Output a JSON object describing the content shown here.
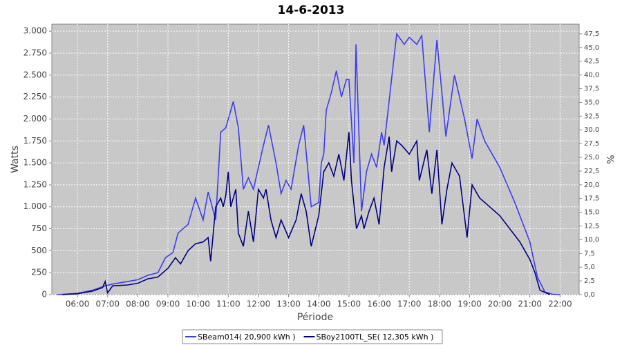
{
  "chart_data": {
    "type": "line",
    "title": "14-6-2013",
    "x_label": "Période",
    "y_label": "Watts",
    "y2_label": "%",
    "xlim": [
      "05:09",
      "22:38"
    ],
    "xticks": [
      "06:00",
      "07:00",
      "08:00",
      "09:00",
      "10:00",
      "11:00",
      "12:00",
      "13:00",
      "14:00",
      "15:00",
      "16:00",
      "17:00",
      "18:00",
      "19:00",
      "20:00",
      "21:00",
      "22:00"
    ],
    "ylim": [
      0,
      3080
    ],
    "yticks": [
      0,
      250,
      500,
      750,
      {
        "value": 1000,
        "label": "1.000"
      },
      {
        "value": 1250,
        "label": "1.250"
      },
      {
        "value": 1500,
        "label": "1.500"
      },
      {
        "value": 1750,
        "label": "1.750"
      },
      {
        "value": 2000,
        "label": "2.000"
      },
      {
        "value": 2250,
        "label": "2.250"
      },
      {
        "value": 2500,
        "label": "2.500"
      },
      {
        "value": 2750,
        "label": "2.750"
      },
      {
        "value": 3000,
        "label": "3.000"
      }
    ],
    "y2lim": [
      0,
      49.25
    ],
    "y2ticks": [
      {
        "value": 0,
        "label": "0,0"
      },
      {
        "value": 2.5,
        "label": "2,5"
      },
      {
        "value": 5,
        "label": "5,0"
      },
      {
        "value": 7.5,
        "label": "7,5"
      },
      {
        "value": 10,
        "label": "10,0"
      },
      {
        "value": 12.5,
        "label": "12,5"
      },
      {
        "value": 15,
        "label": "15,0"
      },
      {
        "value": 17.5,
        "label": "17,5"
      },
      {
        "value": 20,
        "label": "20,0"
      },
      {
        "value": 22.5,
        "label": "22,5"
      },
      {
        "value": 25,
        "label": "25,0"
      },
      {
        "value": 27.5,
        "label": "27,5"
      },
      {
        "value": 30,
        "label": "30,0"
      },
      {
        "value": 32.5,
        "label": "32,5"
      },
      {
        "value": 35,
        "label": "35,0"
      },
      {
        "value": 37.5,
        "label": "37,5"
      },
      {
        "value": 40,
        "label": "40,0"
      },
      {
        "value": 42.5,
        "label": "42,5"
      },
      {
        "value": 45,
        "label": "45,0"
      },
      {
        "value": 47.5,
        "label": "47,5"
      }
    ],
    "grid": true,
    "legend": "bottom",
    "series": [
      {
        "name": "SBeam014( 20,900 kWh )",
        "color": "#3c3cf0",
        "x": [
          "05:20",
          "06:00",
          "06:30",
          "06:55",
          "07:10",
          "07:40",
          "08:00",
          "08:20",
          "08:40",
          "08:55",
          "09:10",
          "09:20",
          "09:40",
          "09:55",
          "10:10",
          "10:20",
          "10:35",
          "10:45",
          "10:55",
          "11:10",
          "11:20",
          "11:30",
          "11:40",
          "11:50",
          "12:10",
          "12:20",
          "12:35",
          "12:45",
          "12:55",
          "13:05",
          "13:20",
          "13:30",
          "13:45",
          "14:00",
          "14:05",
          "14:10",
          "14:15",
          "14:25",
          "14:35",
          "14:45",
          "14:55",
          "15:00",
          "15:10",
          "15:14",
          "15:25",
          "15:35",
          "15:45",
          "15:55",
          "16:05",
          "16:10",
          "16:35",
          "16:50",
          "17:00",
          "17:15",
          "17:25",
          "17:40",
          "17:55",
          "18:05",
          "18:13",
          "18:30",
          "18:50",
          "19:05",
          "19:15",
          "19:30",
          "20:00",
          "20:30",
          "21:00",
          "21:15",
          "21:30",
          "21:45",
          "22:00"
        ],
        "values": [
          0,
          15,
          50,
          100,
          120,
          150,
          170,
          220,
          250,
          420,
          480,
          700,
          800,
          1100,
          850,
          1170,
          850,
          1850,
          1900,
          2200,
          1900,
          1200,
          1330,
          1200,
          1700,
          1930,
          1500,
          1150,
          1300,
          1200,
          1700,
          1930,
          1000,
          1050,
          1500,
          1600,
          2100,
          2300,
          2550,
          2250,
          2450,
          2450,
          1500,
          2850,
          950,
          1400,
          1600,
          1450,
          1850,
          1700,
          2970,
          2850,
          2930,
          2850,
          2950,
          1850,
          2900,
          2300,
          1800,
          2500,
          2000,
          1550,
          2000,
          1750,
          1450,
          1050,
          600,
          200,
          30,
          5,
          0
        ]
      },
      {
        "name": "SBoy2100TL_SE( 12,305 kWh )",
        "color": "#000080",
        "x": [
          "05:30",
          "06:00",
          "06:30",
          "06:50",
          "06:55",
          "07:00",
          "07:10",
          "07:40",
          "08:00",
          "08:20",
          "08:40",
          "09:00",
          "09:15",
          "09:25",
          "09:40",
          "09:55",
          "10:10",
          "10:20",
          "10:25",
          "10:35",
          "10:45",
          "10:50",
          "10:55",
          "11:00",
          "11:05",
          "11:15",
          "11:20",
          "11:30",
          "11:40",
          "11:50",
          "12:00",
          "12:10",
          "12:15",
          "12:25",
          "12:35",
          "12:45",
          "13:00",
          "13:15",
          "13:25",
          "13:35",
          "13:45",
          "14:00",
          "14:10",
          "14:20",
          "14:30",
          "14:40",
          "14:50",
          "15:00",
          "15:05",
          "15:15",
          "15:25",
          "15:30",
          "15:40",
          "15:50",
          "16:00",
          "16:10",
          "16:20",
          "16:25",
          "16:35",
          "16:45",
          "17:00",
          "17:15",
          "17:20",
          "17:35",
          "17:45",
          "17:55",
          "18:05",
          "18:15",
          "18:25",
          "18:40",
          "18:55",
          "19:05",
          "19:20",
          "19:40",
          "20:00",
          "20:20",
          "20:40",
          "21:00",
          "21:10",
          "21:20",
          "21:40"
        ],
        "values": [
          0,
          10,
          40,
          80,
          150,
          20,
          100,
          110,
          130,
          180,
          200,
          300,
          420,
          350,
          500,
          580,
          600,
          650,
          380,
          1000,
          1100,
          1000,
          1130,
          1400,
          1000,
          1200,
          700,
          550,
          950,
          600,
          1200,
          1100,
          1200,
          850,
          650,
          850,
          650,
          850,
          1150,
          950,
          550,
          900,
          1400,
          1500,
          1350,
          1600,
          1300,
          1850,
          1300,
          750,
          900,
          750,
          950,
          1100,
          800,
          1450,
          1800,
          1400,
          1750,
          1700,
          1600,
          1750,
          1300,
          1650,
          1150,
          1650,
          800,
          1200,
          1500,
          1350,
          650,
          1250,
          1100,
          1000,
          900,
          750,
          600,
          400,
          250,
          50,
          0
        ]
      }
    ]
  }
}
